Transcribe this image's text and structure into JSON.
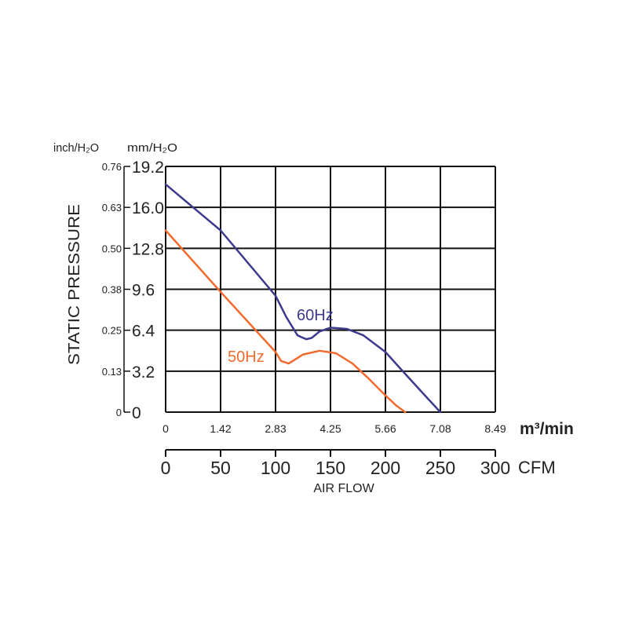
{
  "chart_data": {
    "type": "line",
    "title": "",
    "xlabel": "AIR FLOW",
    "ylabel": "STATIC PRESSURE",
    "x_unit_primary": "CFM",
    "x_unit_secondary": "m³/min",
    "y_unit_primary": "mm/H₂O",
    "y_unit_secondary": "inch/H₂O",
    "xlim": [
      0,
      300
    ],
    "ylim": [
      0,
      19.2
    ],
    "grid": true,
    "x_ticks_cfm": [
      "0",
      "50",
      "100",
      "150",
      "200",
      "250",
      "300"
    ],
    "x_ticks_m3min": [
      "0",
      "1.42",
      "2.83",
      "4.25",
      "5.66",
      "7.08",
      "8.49"
    ],
    "y_ticks_mm": [
      "0",
      "3.2",
      "6.4",
      "9.6",
      "12.8",
      "16.0",
      "19.2"
    ],
    "y_ticks_inch": [
      "0",
      "0.13",
      "0.25",
      "0.38",
      "0.50",
      "0.63",
      "0.76"
    ],
    "series": [
      {
        "name": "60Hz",
        "color": "#3b3a8c",
        "x": [
          0,
          50,
          100,
          110,
          120,
          128,
          133,
          140,
          150,
          165,
          180,
          200,
          220,
          237,
          250
        ],
        "y": [
          17.8,
          14.2,
          9.1,
          7.4,
          6.0,
          5.7,
          5.8,
          6.3,
          6.6,
          6.5,
          6.0,
          4.7,
          2.8,
          1.2,
          0
        ]
      },
      {
        "name": "50Hz",
        "color": "#f26a2e",
        "x": [
          0,
          50,
          100,
          105,
          112,
          125,
          140,
          155,
          170,
          185,
          200,
          210,
          218
        ],
        "y": [
          14.2,
          9.4,
          4.7,
          4.0,
          3.8,
          4.5,
          4.8,
          4.6,
          3.8,
          2.6,
          1.3,
          0.5,
          0
        ]
      }
    ],
    "series_labels": [
      "60Hz",
      "50Hz"
    ]
  }
}
